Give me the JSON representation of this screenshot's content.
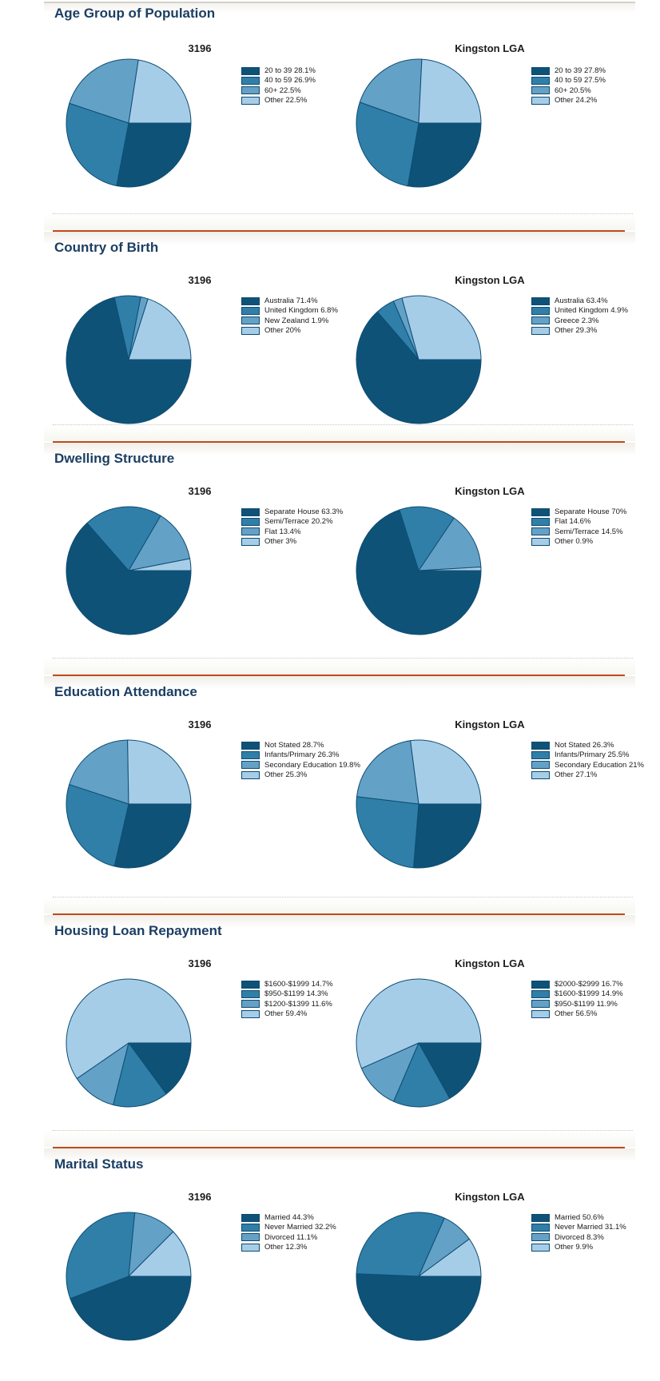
{
  "palette": [
    "#0e5278",
    "#2f7fa9",
    "#64a1c6",
    "#a6cde8"
  ],
  "accent_line_color": "#c04a1c",
  "chart_data": [
    {
      "section": "Age Group of Population",
      "type": "pie",
      "legend_position": "right",
      "charts": [
        {
          "title": "3196",
          "slices": [
            {
              "label": "20 to 39",
              "value": 28.1,
              "pct": "28.1%",
              "text": "20 to 39 28.1%"
            },
            {
              "label": "40 to 59",
              "value": 26.9,
              "pct": "26.9%",
              "text": "40 to 59 26.9%"
            },
            {
              "label": "60+",
              "value": 22.5,
              "pct": "22.5%",
              "text": "60+ 22.5%"
            },
            {
              "label": "Other",
              "value": 22.5,
              "pct": "22.5%",
              "text": "Other 22.5%"
            }
          ]
        },
        {
          "title": "Kingston LGA",
          "slices": [
            {
              "label": "20 to 39",
              "value": 27.8,
              "pct": "27.8%",
              "text": "20 to 39 27.8%"
            },
            {
              "label": "40 to 59",
              "value": 27.5,
              "pct": "27.5%",
              "text": "40 to 59 27.5%"
            },
            {
              "label": "60+",
              "value": 20.5,
              "pct": "20.5%",
              "text": "60+ 20.5%"
            },
            {
              "label": "Other",
              "value": 24.2,
              "pct": "24.2%",
              "text": "Other 24.2%"
            }
          ]
        }
      ]
    },
    {
      "section": "Country of Birth",
      "type": "pie",
      "legend_position": "right",
      "charts": [
        {
          "title": "3196",
          "slices": [
            {
              "label": "Australia",
              "value": 71.4,
              "pct": "71.4%",
              "text": "Australia 71.4%"
            },
            {
              "label": "United Kingdom",
              "value": 6.8,
              "pct": "6.8%",
              "text": "United Kingdom 6.8%"
            },
            {
              "label": "New Zealand",
              "value": 1.9,
              "pct": "1.9%",
              "text": "New Zealand 1.9%"
            },
            {
              "label": "Other",
              "value": 20,
              "pct": "20%",
              "text": "Other 20%"
            }
          ]
        },
        {
          "title": "Kingston LGA",
          "slices": [
            {
              "label": "Australia",
              "value": 63.4,
              "pct": "63.4%",
              "text": "Australia 63.4%"
            },
            {
              "label": "United Kingdom",
              "value": 4.9,
              "pct": "4.9%",
              "text": "United Kingdom 4.9%"
            },
            {
              "label": "Greece",
              "value": 2.3,
              "pct": "2.3%",
              "text": "Greece 2.3%"
            },
            {
              "label": "Other",
              "value": 29.3,
              "pct": "29.3%",
              "text": "Other 29.3%"
            }
          ]
        }
      ]
    },
    {
      "section": "Dwelling Structure",
      "type": "pie",
      "legend_position": "right",
      "charts": [
        {
          "title": "3196",
          "slices": [
            {
              "label": "Separate House",
              "value": 63.3,
              "pct": "63.3%",
              "text": "Separate House 63.3%"
            },
            {
              "label": "Semi/Terrace",
              "value": 20.2,
              "pct": "20.2%",
              "text": "Semi/Terrace 20.2%"
            },
            {
              "label": "Flat",
              "value": 13.4,
              "pct": "13.4%",
              "text": "Flat 13.4%"
            },
            {
              "label": "Other",
              "value": 3,
              "pct": "3%",
              "text": "Other 3%"
            }
          ]
        },
        {
          "title": "Kingston LGA",
          "slices": [
            {
              "label": "Separate House",
              "value": 70,
              "pct": "70%",
              "text": "Separate House 70%"
            },
            {
              "label": "Flat",
              "value": 14.6,
              "pct": "14.6%",
              "text": "Flat 14.6%"
            },
            {
              "label": "Semi/Terrace",
              "value": 14.5,
              "pct": "14.5%",
              "text": "Semi/Terrace 14.5%"
            },
            {
              "label": "Other",
              "value": 0.9,
              "pct": "0.9%",
              "text": "Other 0.9%"
            }
          ]
        }
      ]
    },
    {
      "section": "Education Attendance",
      "type": "pie",
      "legend_position": "right",
      "charts": [
        {
          "title": "3196",
          "slices": [
            {
              "label": "Not Stated",
              "value": 28.7,
              "pct": "28.7%",
              "text": "Not Stated 28.7%"
            },
            {
              "label": "Infants/Primary",
              "value": 26.3,
              "pct": "26.3%",
              "text": "Infants/Primary 26.3%"
            },
            {
              "label": "Secondary Education",
              "value": 19.8,
              "pct": "19.8%",
              "text": "Secondary Education 19.8%"
            },
            {
              "label": "Other",
              "value": 25.3,
              "pct": "25.3%",
              "text": "Other 25.3%"
            }
          ]
        },
        {
          "title": "Kingston LGA",
          "slices": [
            {
              "label": "Not Stated",
              "value": 26.3,
              "pct": "26.3%",
              "text": "Not Stated 26.3%"
            },
            {
              "label": "Infants/Primary",
              "value": 25.5,
              "pct": "25.5%",
              "text": "Infants/Primary 25.5%"
            },
            {
              "label": "Secondary Education",
              "value": 21,
              "pct": "21%",
              "text": "Secondary Education 21%"
            },
            {
              "label": "Other",
              "value": 27.1,
              "pct": "27.1%",
              "text": "Other 27.1%"
            }
          ]
        }
      ]
    },
    {
      "section": "Housing Loan Repayment",
      "type": "pie",
      "legend_position": "right",
      "charts": [
        {
          "title": "3196",
          "slices": [
            {
              "label": "$1600-$1999",
              "value": 14.7,
              "pct": "14.7%",
              "text": "$1600-$1999 14.7%"
            },
            {
              "label": "$950-$1199",
              "value": 14.3,
              "pct": "14.3%",
              "text": "$950-$1199 14.3%"
            },
            {
              "label": "$1200-$1399",
              "value": 11.6,
              "pct": "11.6%",
              "text": "$1200-$1399 11.6%"
            },
            {
              "label": "Other",
              "value": 59.4,
              "pct": "59.4%",
              "text": "Other 59.4%"
            }
          ]
        },
        {
          "title": "Kingston LGA",
          "slices": [
            {
              "label": "$2000-$2999",
              "value": 16.7,
              "pct": "16.7%",
              "text": "$2000-$2999 16.7%"
            },
            {
              "label": "$1600-$1999",
              "value": 14.9,
              "pct": "14.9%",
              "text": "$1600-$1999 14.9%"
            },
            {
              "label": "$950-$1199",
              "value": 11.9,
              "pct": "11.9%",
              "text": "$950-$1199 11.9%"
            },
            {
              "label": "Other",
              "value": 56.5,
              "pct": "56.5%",
              "text": "Other 56.5%"
            }
          ]
        }
      ]
    },
    {
      "section": "Marital Status",
      "type": "pie",
      "legend_position": "right",
      "charts": [
        {
          "title": "3196",
          "slices": [
            {
              "label": "Married",
              "value": 44.3,
              "pct": "44.3%",
              "text": "Married 44.3%"
            },
            {
              "label": "Never Married",
              "value": 32.2,
              "pct": "32.2%",
              "text": "Never Married 32.2%"
            },
            {
              "label": "Divorced",
              "value": 11.1,
              "pct": "11.1%",
              "text": "Divorced 11.1%"
            },
            {
              "label": "Other",
              "value": 12.3,
              "pct": "12.3%",
              "text": "Other 12.3%"
            }
          ]
        },
        {
          "title": "Kingston LGA",
          "slices": [
            {
              "label": "Married",
              "value": 50.6,
              "pct": "50.6%",
              "text": "Married 50.6%"
            },
            {
              "label": "Never Married",
              "value": 31.1,
              "pct": "31.1%",
              "text": "Never Married 31.1%"
            },
            {
              "label": "Divorced",
              "value": 8.3,
              "pct": "8.3%",
              "text": "Divorced 8.3%"
            },
            {
              "label": "Other",
              "value": 9.9,
              "pct": "9.9%",
              "text": "Other 9.9%"
            }
          ]
        }
      ]
    }
  ]
}
